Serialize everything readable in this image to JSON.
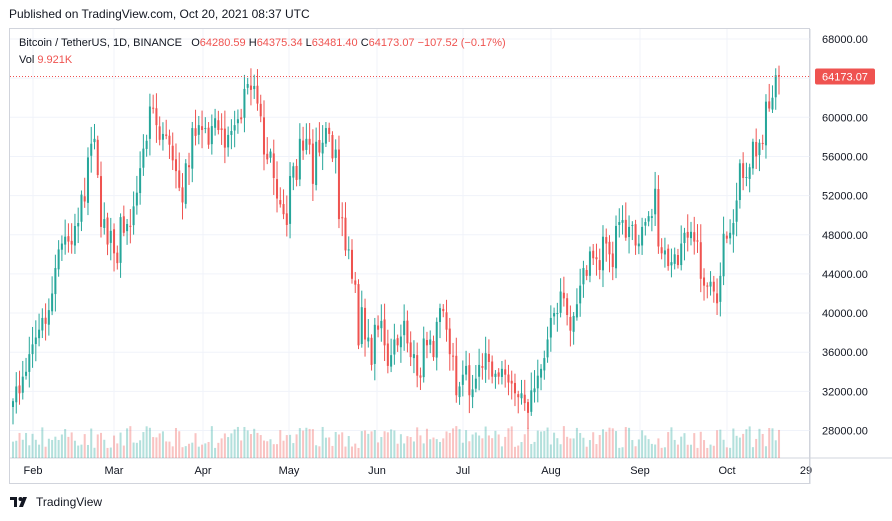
{
  "published_text": "Published on TradingView.com, Oct 20, 2021 08:37 UTC",
  "footer_brand": "TradingView",
  "legend": {
    "symbol": "Bitcoin / TetherUS, 1D, BINANCE",
    "open_label": "O",
    "open": "64280.59",
    "high_label": "H",
    "high": "64375.34",
    "low_label": "L",
    "low": "63481.40",
    "close_label": "C",
    "close": "64173.07",
    "change": "−107.52 (−0.17%)",
    "vol_label": "Vol",
    "vol": "9.921K"
  },
  "colors": {
    "up": "#26a69a",
    "down": "#ef5350",
    "grid": "#f0f3fa",
    "axis": "#d1d4dc",
    "text": "#131722"
  },
  "chart_data": {
    "type": "candlestick",
    "title": "",
    "ylim": [
      25000,
      70000
    ],
    "y_ticks": [
      28000,
      32000,
      36000,
      40000,
      44000,
      48000,
      52000,
      56000,
      60000,
      64000,
      68000
    ],
    "y_tick_labels": [
      "28000.00",
      "32000.00",
      "36000.00",
      "40000.00",
      "44000.00",
      "48000.00",
      "52000.00",
      "56000.00",
      "60000.00",
      "64000.00",
      "68000.00"
    ],
    "x_labels": [
      "Feb",
      "Mar",
      "Apr",
      "May",
      "Jun",
      "Jul",
      "Aug",
      "Sep",
      "Oct",
      "29"
    ],
    "last_price": 64173.07,
    "last_price_label": "64173.07",
    "closes_daily": [
      31000,
      32500,
      31800,
      33500,
      34000,
      35800,
      36800,
      37500,
      38300,
      39500,
      38900,
      40300,
      42000,
      44600,
      46500,
      47100,
      47800,
      47300,
      47000,
      48900,
      49200,
      52100,
      51400,
      55900,
      57300,
      57800,
      54100,
      48800,
      49600,
      47000,
      48400,
      46100,
      45100,
      49800,
      48200,
      49100,
      48800,
      50900,
      52300,
      54800,
      56800,
      57600,
      61100,
      60900,
      59200,
      57700,
      58300,
      58100,
      57200,
      55600,
      54500,
      52800,
      51300,
      55300,
      54900,
      58900,
      58100,
      59200,
      58700,
      58900,
      57200,
      59100,
      59900,
      58700,
      58700,
      56900,
      58200,
      58600,
      59200,
      59800,
      59800,
      62900,
      63400,
      62800,
      63200,
      61400,
      60100,
      56200,
      55700,
      56500,
      53800,
      51700,
      51100,
      50100,
      49000,
      54000,
      55000,
      53600,
      57800,
      56600,
      57800,
      57200,
      53200,
      57500,
      56400,
      57400,
      58900,
      58300,
      55800,
      56700,
      49600,
      49700,
      46400,
      46500,
      43500,
      42900,
      36700,
      40600,
      37300,
      37500,
      34700,
      38800,
      38300,
      39200,
      36700,
      34600,
      35700,
      37300,
      36700,
      37600,
      39200,
      36900,
      35500,
      35800,
      33600,
      33400,
      37400,
      36700,
      37300,
      35500,
      39100,
      40500,
      40200,
      38300,
      35800,
      35600,
      31600,
      32500,
      33700,
      34600,
      31600,
      32200,
      33300,
      34700,
      34400,
      35900,
      35000,
      33500,
      33800,
      33500,
      34300,
      33700,
      32900,
      32800,
      31800,
      31400,
      31800,
      30800,
      29800,
      32100,
      32300,
      33600,
      34300,
      35400,
      37300,
      39500,
      40000,
      40000,
      42200,
      41500,
      39800,
      38200,
      39700,
      40900,
      42800,
      44600,
      43800,
      46300,
      45600,
      45500,
      44400,
      47800,
      47100,
      46000,
      44700,
      48900,
      49300,
      49500,
      47700,
      48800,
      49000,
      46900,
      47100,
      48800,
      49300,
      49900,
      49900,
      52700,
      46800,
      46100,
      46400,
      44800,
      45200,
      46000,
      44900,
      47100,
      48200,
      47700,
      48300,
      47300,
      47300,
      43500,
      42800,
      42700,
      43200,
      42200,
      41000,
      43800,
      48100,
      47600,
      48200,
      49200,
      51500,
      55300,
      53800,
      53900,
      54900,
      57500,
      56000,
      57400,
      57300,
      61600,
      60900,
      62000,
      64300,
      64173
    ],
    "series_note": ""
  }
}
